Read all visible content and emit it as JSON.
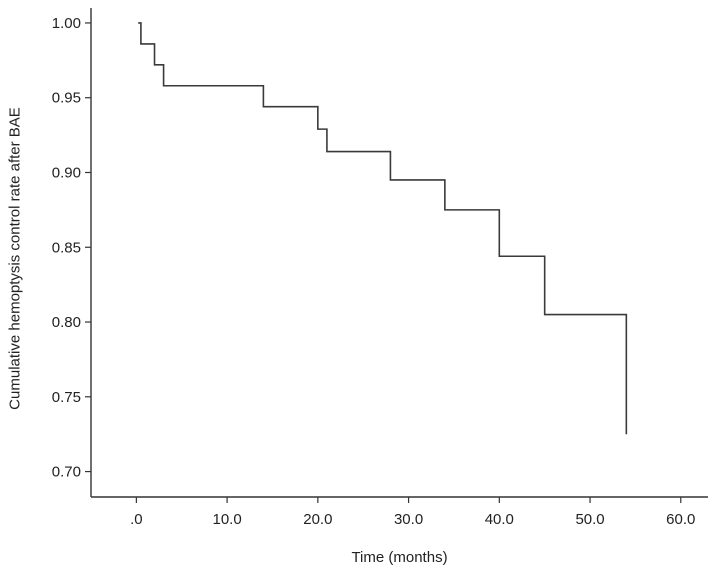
{
  "chart_data": {
    "type": "line",
    "step": true,
    "xlabel": "Time (months)",
    "ylabel": "Cumulative hemoptysis control rate after BAE",
    "xlim": [
      -5,
      63
    ],
    "ylim": [
      0.683,
      1.01
    ],
    "x_ticks": [
      0,
      10,
      20,
      30,
      40,
      50,
      60
    ],
    "x_tick_labels": [
      ".0",
      "10.0",
      "20.0",
      "30.0",
      "40.0",
      "50.0",
      "60.0"
    ],
    "y_ticks": [
      0.7,
      0.75,
      0.8,
      0.85,
      0.9,
      0.95,
      1.0
    ],
    "y_tick_labels": [
      "0.70",
      "0.75",
      "0.80",
      "0.85",
      "0.90",
      "0.95",
      "1.00"
    ],
    "grid": false,
    "series": [
      {
        "color": "#3a3a3a",
        "points": [
          {
            "x": 0.2,
            "y": 1.0
          },
          {
            "x": 0.5,
            "y": 0.986
          },
          {
            "x": 2.0,
            "y": 0.972
          },
          {
            "x": 3.0,
            "y": 0.958
          },
          {
            "x": 14.0,
            "y": 0.944
          },
          {
            "x": 20.0,
            "y": 0.929
          },
          {
            "x": 21.0,
            "y": 0.914
          },
          {
            "x": 28.0,
            "y": 0.895
          },
          {
            "x": 34.0,
            "y": 0.875
          },
          {
            "x": 40.0,
            "y": 0.844
          },
          {
            "x": 45.0,
            "y": 0.805
          },
          {
            "x": 54.0,
            "y": 0.725
          }
        ]
      }
    ]
  }
}
